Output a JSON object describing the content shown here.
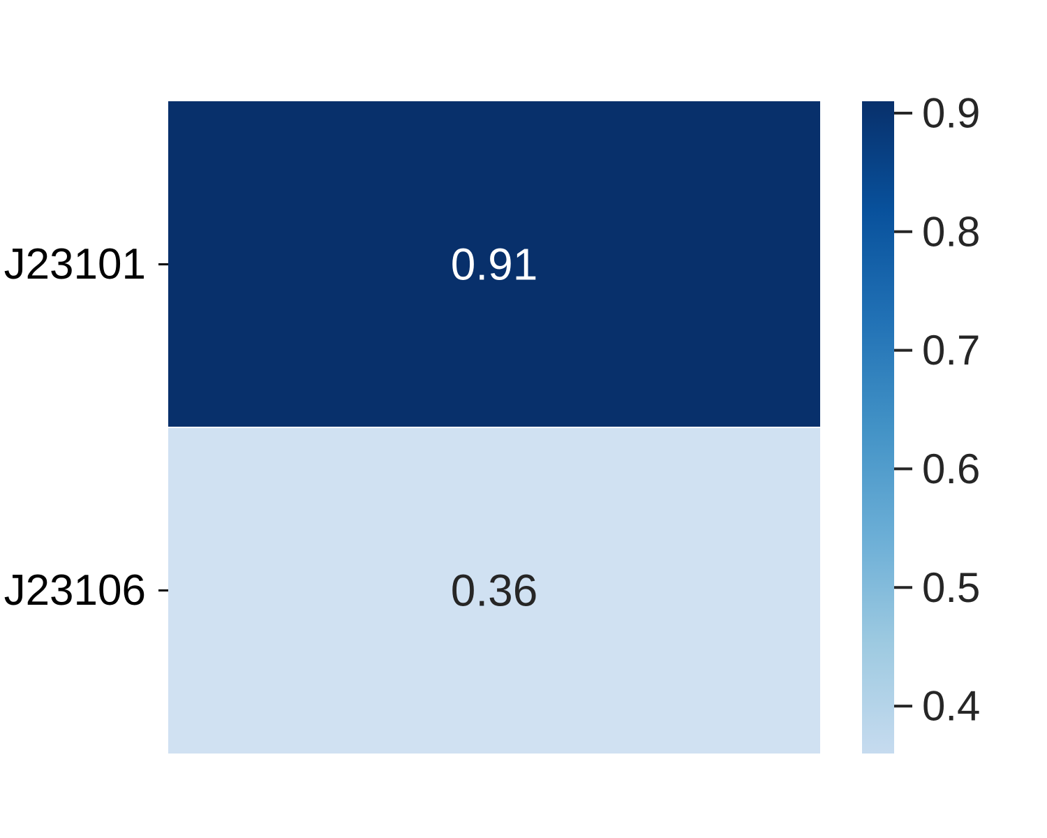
{
  "chart_data": {
    "type": "heatmap",
    "rows": [
      "J23101",
      "J23106"
    ],
    "columns": [
      ""
    ],
    "values": [
      [
        0.91
      ],
      [
        0.36
      ]
    ],
    "annotations": [
      "0.91",
      "0.36"
    ],
    "colorbar": {
      "min": 0.36,
      "max": 0.91,
      "ticks": [
        0.4,
        0.5,
        0.6,
        0.7,
        0.8,
        0.9
      ],
      "tick_labels": [
        "0.4",
        "0.5",
        "0.6",
        "0.7",
        "0.8",
        "0.9"
      ],
      "colormap": "Blues",
      "gradient_stops": [
        "#c6dbef",
        "#9ecae1",
        "#6baed6",
        "#4292c6",
        "#2171b5",
        "#08519c",
        "#08306b"
      ]
    },
    "cell_colors": [
      "#08306b",
      "#d0e1f2"
    ],
    "annotation_colors": [
      "#ffffff",
      "#262626"
    ],
    "title": "",
    "xlabel": "",
    "ylabel": ""
  }
}
